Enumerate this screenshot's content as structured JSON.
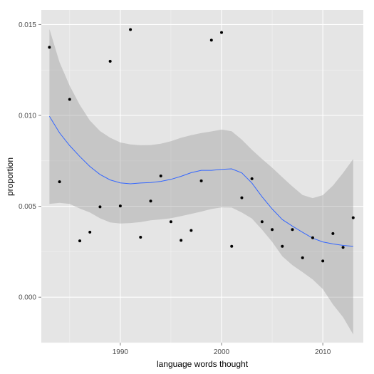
{
  "chart_data": {
    "type": "scatter",
    "title": "",
    "xlabel": "language words thought",
    "ylabel": "proportion",
    "xlim": [
      1982.2,
      2014.0
    ],
    "ylim": [
      -0.0025,
      0.0158
    ],
    "xticks": [
      1990,
      2000,
      2010
    ],
    "xtick_labels": [
      "1990",
      "2000",
      "2010"
    ],
    "yticks": [
      0.0,
      0.005,
      0.01,
      0.015
    ],
    "ytick_labels": [
      "0.000",
      "0.005",
      "0.010",
      "0.015"
    ],
    "grid": true,
    "legend": "none",
    "series": [
      {
        "type": "scatter",
        "points": [
          [
            1983,
            0.01375
          ],
          [
            1984,
            0.00635
          ],
          [
            1985,
            0.01088
          ],
          [
            1986,
            0.0031
          ],
          [
            1987,
            0.00358
          ],
          [
            1988,
            0.00497
          ],
          [
            1989,
            0.01298
          ],
          [
            1990,
            0.00502
          ],
          [
            1991,
            0.01472
          ],
          [
            1992,
            0.0033
          ],
          [
            1993,
            0.00529
          ],
          [
            1994,
            0.00667
          ],
          [
            1995,
            0.00415
          ],
          [
            1996,
            0.00313
          ],
          [
            1997,
            0.00367
          ],
          [
            1998,
            0.0064
          ],
          [
            1999,
            0.01414
          ],
          [
            2000,
            0.01456
          ],
          [
            2001,
            0.0028
          ],
          [
            2002,
            0.00547
          ],
          [
            2003,
            0.00652
          ],
          [
            2004,
            0.00415
          ],
          [
            2005,
            0.00372
          ],
          [
            2006,
            0.0028
          ],
          [
            2007,
            0.00372
          ],
          [
            2008,
            0.00217
          ],
          [
            2009,
            0.00327
          ],
          [
            2010,
            0.00199
          ],
          [
            2011,
            0.0035
          ],
          [
            2012,
            0.00274
          ],
          [
            2013,
            0.00437
          ]
        ]
      },
      {
        "type": "line",
        "smoother": true,
        "points": [
          [
            1983,
            0.00995
          ],
          [
            1984,
            0.00904
          ],
          [
            1985,
            0.00834
          ],
          [
            1986,
            0.00774
          ],
          [
            1987,
            0.00719
          ],
          [
            1988,
            0.00675
          ],
          [
            1989,
            0.00645
          ],
          [
            1990,
            0.00629
          ],
          [
            1991,
            0.00624
          ],
          [
            1992,
            0.00628
          ],
          [
            1993,
            0.00631
          ],
          [
            1994,
            0.00637
          ],
          [
            1995,
            0.00648
          ],
          [
            1996,
            0.00665
          ],
          [
            1997,
            0.00685
          ],
          [
            1998,
            0.00698
          ],
          [
            1999,
            0.00698
          ],
          [
            2000,
            0.00703
          ],
          [
            2001,
            0.00706
          ],
          [
            2002,
            0.00684
          ],
          [
            2003,
            0.00628
          ],
          [
            2004,
            0.00552
          ],
          [
            2005,
            0.00485
          ],
          [
            2006,
            0.00427
          ],
          [
            2007,
            0.00391
          ],
          [
            2008,
            0.00357
          ],
          [
            2009,
            0.00325
          ],
          [
            2010,
            0.00304
          ],
          [
            2011,
            0.00293
          ],
          [
            2012,
            0.00285
          ],
          [
            2013,
            0.0028
          ]
        ],
        "band_upper": [
          0.01475,
          0.01292,
          0.01163,
          0.01058,
          0.00972,
          0.00914,
          0.00877,
          0.00851,
          0.0084,
          0.00836,
          0.00837,
          0.00844,
          0.00858,
          0.00877,
          0.00891,
          0.00903,
          0.00912,
          0.00922,
          0.00913,
          0.00867,
          0.00811,
          0.0076,
          0.00712,
          0.0066,
          0.00609,
          0.00562,
          0.00545,
          0.00561,
          0.00614,
          0.00684,
          0.0076
        ],
        "band_lower": [
          0.00513,
          0.00519,
          0.00513,
          0.00488,
          0.00466,
          0.00434,
          0.00411,
          0.00405,
          0.00408,
          0.00413,
          0.00423,
          0.00428,
          0.00434,
          0.00446,
          0.00458,
          0.00471,
          0.00485,
          0.00494,
          0.00493,
          0.00466,
          0.00433,
          0.00371,
          0.00304,
          0.00225,
          0.00176,
          0.00138,
          0.00098,
          0.00045,
          -0.0004,
          -0.0011,
          -0.00205
        ]
      }
    ],
    "colors": {
      "panel_background": "#e5e5e5",
      "grid_major": "#ffffff",
      "grid_minor": "#f2f2f2",
      "points": "#000000",
      "smoother_line": "#3366ff",
      "confidence_band": "#999999"
    }
  }
}
